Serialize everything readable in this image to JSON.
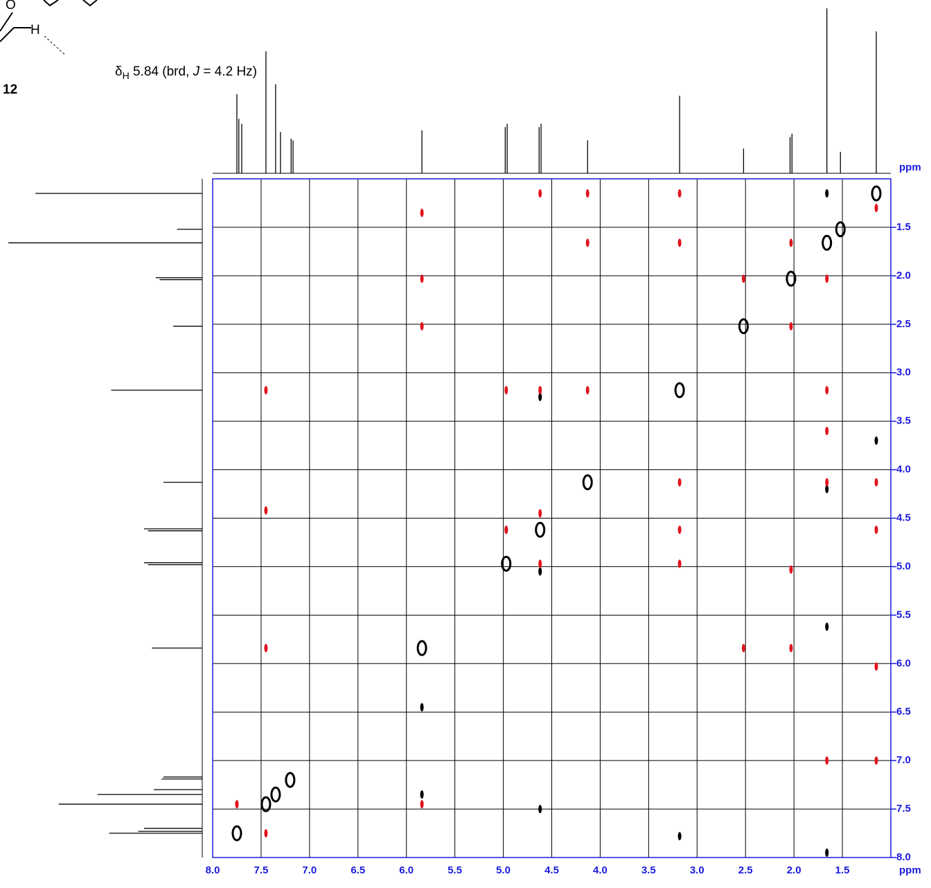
{
  "chart_data": {
    "type": "contour",
    "annotations": {
      "atom_o": "O",
      "atom_h": "H",
      "shift_parts": [
        "δ",
        "H",
        " 5.84 (brd, ",
        "J",
        " = 4.2 Hz)"
      ],
      "compound": "12"
    },
    "x_label": "ppm",
    "y_label": "ppm",
    "xlim": [
      8.0,
      1.0
    ],
    "ylim": [
      1.0,
      8.0
    ],
    "xticks": [
      {
        "value": 8,
        "label": "8.0"
      },
      7.5,
      {
        "value": 7,
        "label": "7.0"
      },
      6.5,
      {
        "value": 6,
        "label": "6.0"
      },
      5.5,
      {
        "value": 5,
        "label": "5.0"
      },
      4.5,
      {
        "value": 4,
        "label": "4.0"
      },
      3.5,
      {
        "value": 3,
        "label": "3.0"
      },
      2.5,
      {
        "value": 2,
        "label": "2.0"
      },
      1.5
    ],
    "yticks": [
      1.5,
      {
        "value": 2,
        "label": "2.0"
      },
      2.5,
      {
        "value": 3,
        "label": "3.0"
      },
      3.5,
      {
        "value": 4,
        "label": "4.0"
      },
      4.5,
      {
        "value": 5,
        "label": "5.0"
      },
      5.5,
      {
        "value": 6,
        "label": "6.0"
      },
      6.5,
      {
        "value": 7,
        "label": "7.0"
      },
      7.5,
      {
        "value": 8,
        "label": "8.0"
      }
    ],
    "grid": true,
    "axis_color": "#1a1adc",
    "projection": {
      "color": "#000000",
      "x": [
        1.15,
        1.52,
        1.66,
        2.02,
        2.04,
        2.52,
        3.18,
        4.13,
        4.61,
        4.63,
        4.96,
        4.98,
        5.84,
        7.17,
        7.19,
        7.3,
        7.35,
        7.45,
        7.7,
        7.73,
        7.75
      ],
      "values": [
        86,
        13,
        100,
        24,
        22,
        15,
        47,
        20,
        30,
        28,
        30,
        28,
        26,
        20,
        21,
        25,
        54,
        74,
        30,
        33,
        48
      ]
    },
    "series": [
      {
        "color": "#000000",
        "outline": true,
        "x": [
          7.75,
          7.45,
          7.35,
          7.2,
          5.84,
          4.97,
          4.62,
          4.13,
          3.18,
          2.52,
          2.03,
          1.66,
          1.52,
          1.15
        ],
        "y": [
          7.75,
          7.45,
          7.35,
          7.2,
          5.84,
          4.97,
          4.62,
          4.13,
          3.18,
          2.52,
          2.03,
          1.66,
          1.52,
          1.15
        ]
      },
      {
        "color": "#000000",
        "outline": false,
        "x": [
          1.66,
          4.62,
          1.66,
          1.15,
          5.84,
          4.62,
          1.66,
          4.62,
          4.97,
          5.84,
          3.18,
          1.66
        ],
        "y": [
          1.15,
          3.25,
          4.2,
          3.7,
          7.35,
          7.5,
          7.95,
          5.05,
          4.62,
          6.45,
          7.78,
          5.62
        ]
      },
      {
        "color": "#e0141e",
        "outline": false,
        "x": [
          4.62,
          4.13,
          3.18,
          5.84,
          4.13,
          3.18,
          2.03,
          2.52,
          1.66,
          5.84,
          5.84,
          2.03,
          7.45,
          4.97,
          4.62,
          4.13,
          1.66,
          1.66,
          3.18,
          1.66,
          1.15,
          7.45,
          4.97,
          3.18,
          1.15,
          4.62,
          4.62,
          3.18,
          2.03,
          7.45,
          2.52,
          2.03,
          1.15,
          5.84,
          7.45,
          1.66,
          1.15,
          7.75,
          1.15
        ],
        "y": [
          1.15,
          1.15,
          1.15,
          1.35,
          1.66,
          1.66,
          1.66,
          2.03,
          2.03,
          2.03,
          2.52,
          2.52,
          3.18,
          3.18,
          3.18,
          3.18,
          3.18,
          3.6,
          4.13,
          4.13,
          4.13,
          4.42,
          4.62,
          4.62,
          4.62,
          4.45,
          4.97,
          4.97,
          5.03,
          5.84,
          5.84,
          5.84,
          6.03,
          7.45,
          7.75,
          7.0,
          7.0,
          7.45,
          1.3
        ]
      }
    ]
  }
}
